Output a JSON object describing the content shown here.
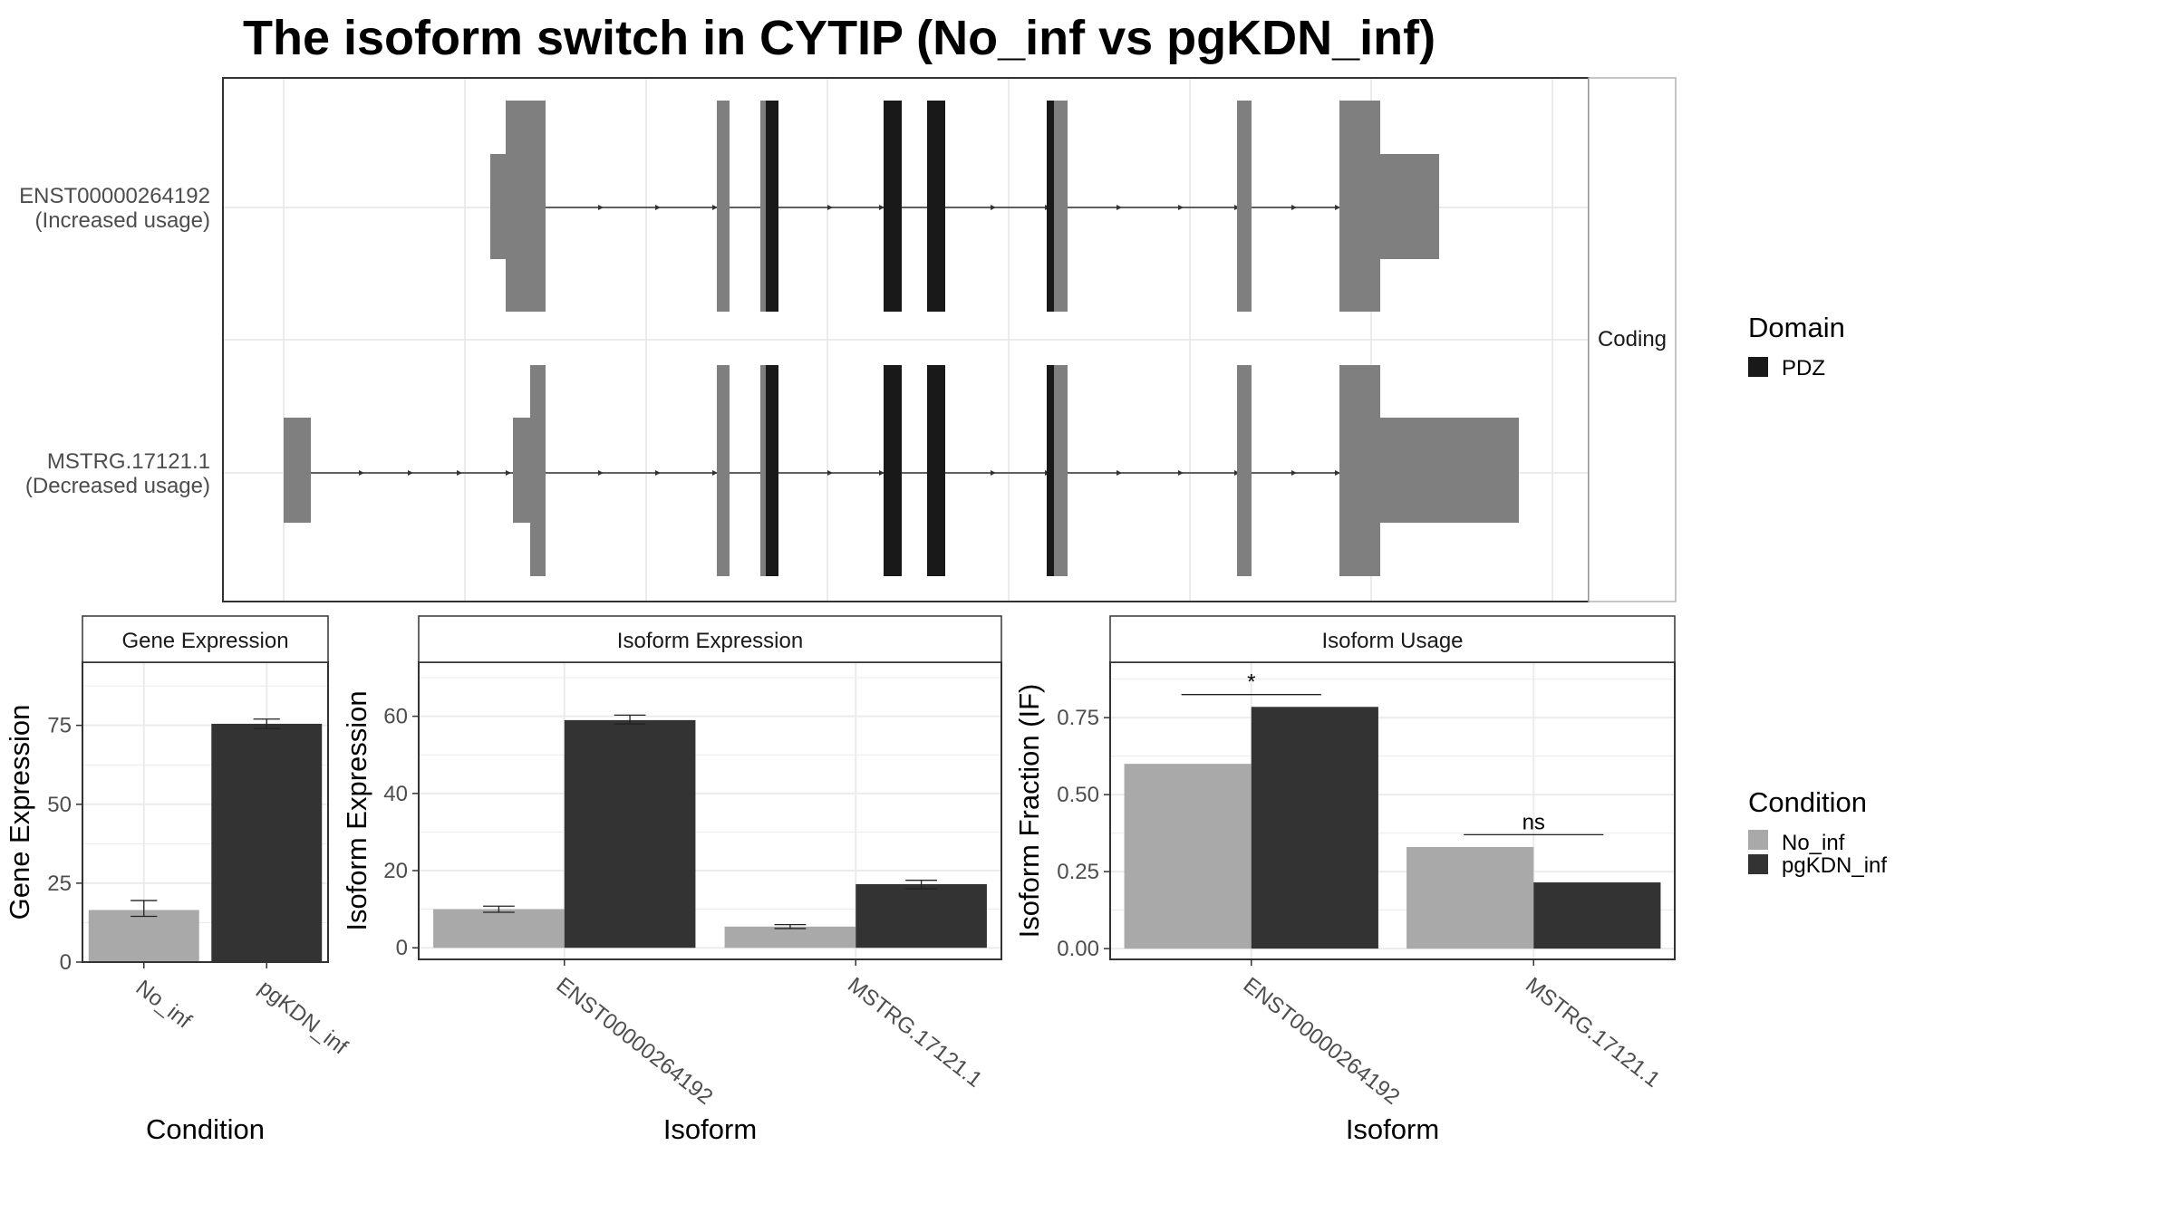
{
  "title": "The isoform switch in CYTIP (No_inf vs pgKDN_inf)",
  "colors": {
    "utr": "#7f7f7f",
    "domain": "#191919",
    "no_inf": "#a9a9a9",
    "pgkdn_inf": "#333333",
    "grid": "#ebebeb",
    "strip_bg": "#ffffff"
  },
  "legends": {
    "domain": {
      "title": "Domain",
      "items": [
        {
          "label": "PDZ",
          "color": "#191919"
        }
      ]
    },
    "condition": {
      "title": "Condition",
      "items": [
        {
          "label": "No_inf",
          "color": "#a9a9a9"
        },
        {
          "label": "pgKDN_inf",
          "color": "#333333"
        }
      ]
    }
  },
  "chart_data": [
    {
      "type": "gene_structure",
      "facet_label": "Coding",
      "transcripts": [
        {
          "id": "ENST00000264192",
          "label": "(Increased usage)"
        },
        {
          "id": "MSTRG.17121.1",
          "label": "(Decreased usage)"
        }
      ]
    },
    {
      "type": "bar",
      "panel_title": "Gene Expression",
      "xlabel": "Condition",
      "ylabel": "Gene Expression",
      "ylim": [
        0,
        95
      ],
      "yticks": [
        0,
        25,
        50,
        75
      ],
      "categories": [
        "No_inf",
        "pgKDN_inf"
      ],
      "series": [
        {
          "values": [
            16.5,
            75.5
          ],
          "error_low": [
            14.5,
            74
          ],
          "error_high": [
            19.5,
            77
          ]
        }
      ]
    },
    {
      "type": "bar",
      "panel_title": "Isoform Expression",
      "xlabel": "Isoform",
      "ylabel": "Isoform Expression",
      "ylim": [
        -3,
        74
      ],
      "yticks": [
        0,
        20,
        40,
        60
      ],
      "categories": [
        "ENST00000264192",
        "MSTRG.17121.1"
      ],
      "series": [
        {
          "name": "No_inf",
          "values": [
            10,
            5.5
          ],
          "error_low": [
            9.2,
            5
          ],
          "error_high": [
            10.8,
            6
          ]
        },
        {
          "name": "pgKDN_inf",
          "values": [
            59,
            16.5
          ],
          "error_low": [
            58,
            15.3
          ],
          "error_high": [
            60.3,
            17.5
          ]
        }
      ]
    },
    {
      "type": "bar",
      "panel_title": "Isoform Usage",
      "xlabel": "Isoform",
      "ylabel": "Isoform Fraction (IF)",
      "ylim": [
        -0.035,
        0.93
      ],
      "yticks": [
        0.0,
        0.25,
        0.5,
        0.75
      ],
      "ytick_labels": [
        "0.00",
        "0.25",
        "0.50",
        "0.75"
      ],
      "categories": [
        "ENST00000264192",
        "MSTRG.17121.1"
      ],
      "series": [
        {
          "name": "No_inf",
          "values": [
            0.6,
            0.33
          ]
        },
        {
          "name": "pgKDN_inf",
          "values": [
            0.785,
            0.215
          ]
        }
      ],
      "significance": [
        {
          "category": "ENST00000264192",
          "label": "*",
          "y": 0.825
        },
        {
          "category": "MSTRG.17121.1",
          "label": "ns",
          "y": 0.37
        }
      ]
    }
  ]
}
